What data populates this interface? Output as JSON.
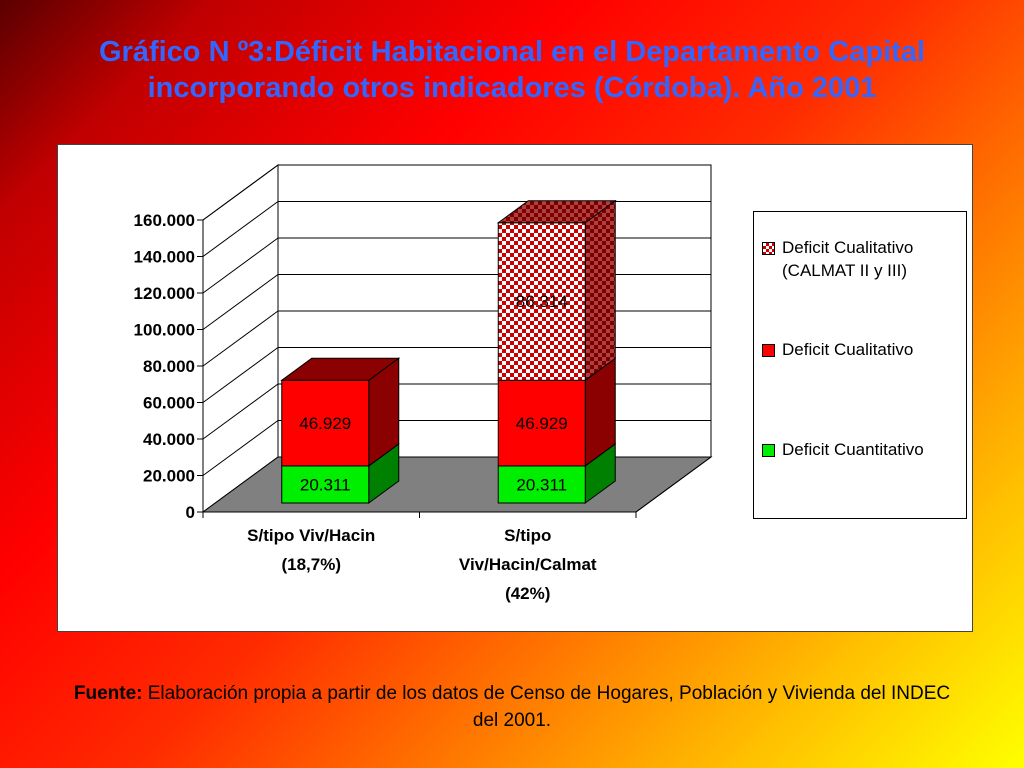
{
  "slide": {
    "title": "Gráfico N º3:Déficit Habitacional en el Departamento Capital incorporando otros indicadores  (Córdoba). Año 2001",
    "source_label": "Fuente:",
    "source_text": " Elaboración propia a partir de los datos de Censo de Hogares, Población y Vivienda del INDEC del 2001."
  },
  "chart_data": {
    "type": "bar",
    "stacked": true,
    "style": "3d",
    "categories": [
      [
        "S/tipo Viv/Hacin",
        "(18,7%)"
      ],
      [
        "S/tipo",
        "Viv/Hacin/Calmat",
        "(42%)"
      ]
    ],
    "series": [
      {
        "name": "Deficit Cuantitativo",
        "values": [
          20311,
          20311
        ],
        "labels": [
          "20.311",
          "20.311"
        ],
        "color": "#00ee00",
        "side": "#008000",
        "pattern": "solid"
      },
      {
        "name": "Deficit Cualitativo",
        "values": [
          46929,
          46929
        ],
        "labels": [
          "46.929",
          "46.929"
        ],
        "color": "#ff0000",
        "side": "#8b0000",
        "pattern": "solid"
      },
      {
        "name": "Deficit Cualitativo (CALMAT II y III)",
        "values": [
          null,
          86314
        ],
        "labels": [
          null,
          "86.314"
        ],
        "color": "#cc0000",
        "side": "#8b0000",
        "pattern": "checker"
      }
    ],
    "legend": [
      {
        "lines": [
          "Deficit Cualitativo",
          "(CALMAT II y III)"
        ],
        "color": "#cc0000",
        "pattern": "checker"
      },
      {
        "lines": [
          "Deficit Cualitativo"
        ],
        "color": "#ff0000",
        "pattern": "solid"
      },
      {
        "lines": [
          "Deficit Cuantitativo"
        ],
        "color": "#00ee00",
        "pattern": "solid"
      }
    ],
    "yticks": [
      0,
      20000,
      40000,
      60000,
      80000,
      100000,
      120000,
      140000,
      160000
    ],
    "ytick_labels": [
      "0",
      "20.000",
      "40.000",
      "60.000",
      "80.000",
      "100.000",
      "120.000",
      "140.000",
      "160.000"
    ],
    "ylim": [
      0,
      160000
    ],
    "grid": true,
    "legend_position": "right",
    "floor_color": "#808080"
  }
}
